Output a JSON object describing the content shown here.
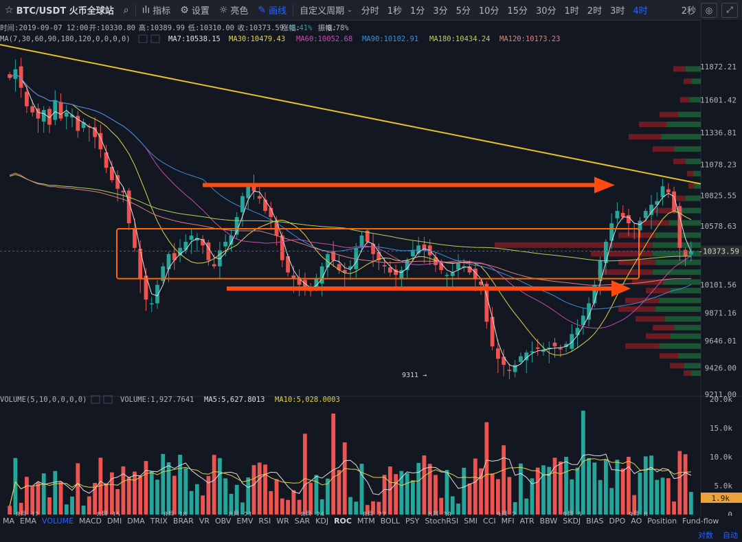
{
  "toolbar": {
    "symbol": "BTC/USDT 火币全球站",
    "indicators": "指标",
    "settings": "设置",
    "theme": "亮色",
    "draw": "画线",
    "custom_period": "自定义周期",
    "periods": [
      "分时",
      "1秒",
      "1分",
      "3分",
      "5分",
      "10分",
      "15分",
      "30分",
      "1时",
      "2时",
      "3时",
      "4时"
    ],
    "active_period": "4时",
    "refresh": "2秒"
  },
  "info_line": {
    "time": "时间:2019-09-07 12:00",
    "open": "开:10330.80",
    "high": "高:10389.99",
    "low": "低:10310.00",
    "close": "收:10373.59",
    "change_label": "涨幅:",
    "change_value": "0.41%",
    "amp_label": "振幅:",
    "amp_value": "0.78%"
  },
  "ma_line": {
    "label": "MA(7,30,60,90,180,120,0,0,0,0)",
    "ma7": "MA7:10538.15",
    "ma30": "MA30:10479.43",
    "ma60": "MA60:10052.68",
    "ma90": "MA90:10102.91",
    "ma180": "MA180:10434.24",
    "ma120": "MA120:10173.23"
  },
  "volume_line": {
    "label": "VOLUME(5,10,0,0,0,0)",
    "volume": "VOLUME:1,927.7641",
    "ma5": "MA5:5,627.8013",
    "ma10": "MA10:5,028.0003"
  },
  "annotation_low": "9311",
  "bottom_tabs": [
    "MA",
    "EMA",
    "VOLUME",
    "MACD",
    "DMI",
    "DMA",
    "TRIX",
    "BRAR",
    "VR",
    "OBV",
    "EMV",
    "RSI",
    "WR",
    "SAR",
    "KDJ",
    "ROC",
    "MTM",
    "BOLL",
    "PSY",
    "StochRSI",
    "SMI",
    "CCI",
    "MFI",
    "ATR",
    "BBW",
    "SKDJ",
    "BIAS",
    "DPO",
    "AO",
    "Position",
    "Fund-flow"
  ],
  "bottom_tab_active": "VOLUME",
  "bottom_tab_bold": "ROC",
  "bottom_right": [
    "对数",
    "自动"
  ],
  "colors": {
    "background": "#131722",
    "up": "#26a69a",
    "down": "#ef5350",
    "ma7": "#e0e0e0",
    "ma30": "#e5d34a",
    "ma60": "#c94cb1",
    "ma90": "#3d8fd6",
    "ma180": "#b6d05a",
    "ma120": "#e08080",
    "trendline": "#e6c229",
    "arrows": "#ff4a12",
    "box": "#ff6a00",
    "price_tag": "#2b2b2b",
    "volume_tag": "#e8a33a"
  },
  "chart_data": {
    "type": "candlestick",
    "price_axis_ticks": [
      "11872.21",
      "11601.42",
      "11336.81",
      "11078.23",
      "10825.55",
      "10578.63",
      "10101.56",
      "9871.16",
      "9646.01",
      "9426.00",
      "9211.00"
    ],
    "current_price": "10373.59",
    "volume_axis_ticks": [
      "20.0k",
      "15.0k",
      "10.0k",
      "5.0k",
      "0"
    ],
    "current_volume": "1.9k",
    "date_labels": [
      "8月 12",
      "8月 15",
      "8月 18",
      "8月 21",
      "8月 24",
      "8月 27",
      "8月 30",
      "9月 2",
      "9月 5",
      "9月 8"
    ],
    "price_range": [
      9211,
      12000
    ],
    "volume_range": [
      0,
      20000
    ],
    "close_prices": [
      11780,
      11850,
      11700,
      11550,
      11500,
      11450,
      11520,
      11400,
      11600,
      11450,
      11500,
      11480,
      11350,
      11420,
      11380,
      11300,
      11200,
      11050,
      10950,
      10880,
      10850,
      10600,
      10400,
      10150,
      9980,
      9950,
      10100,
      10250,
      10350,
      10300,
      10400,
      10450,
      10500,
      10480,
      10420,
      10300,
      10250,
      10380,
      10450,
      10500,
      10650,
      10820,
      10900,
      10860,
      10800,
      10700,
      10650,
      10500,
      10300,
      10200,
      10150,
      10100,
      10080,
      10050,
      10150,
      10250,
      10350,
      10300,
      10220,
      10200,
      10250,
      10400,
      10500,
      10450,
      10350,
      10300,
      10250,
      10200,
      10180,
      10220,
      10300,
      10380,
      10420,
      10380,
      10340,
      10260,
      10220,
      10180,
      10200,
      10280,
      10250,
      10200,
      10150,
      10100,
      9800,
      9600,
      9500,
      9450,
      9400,
      9450,
      9520,
      9550,
      9560,
      9580,
      9570,
      9590,
      9600,
      9580,
      9620,
      9700,
      9750,
      9850,
      9950,
      10100,
      10300,
      10450,
      10600,
      10700,
      10650,
      10600,
      10550,
      10620,
      10700,
      10750,
      10780,
      10900,
      10850,
      10700,
      10400,
      10330,
      10373
    ]
  }
}
